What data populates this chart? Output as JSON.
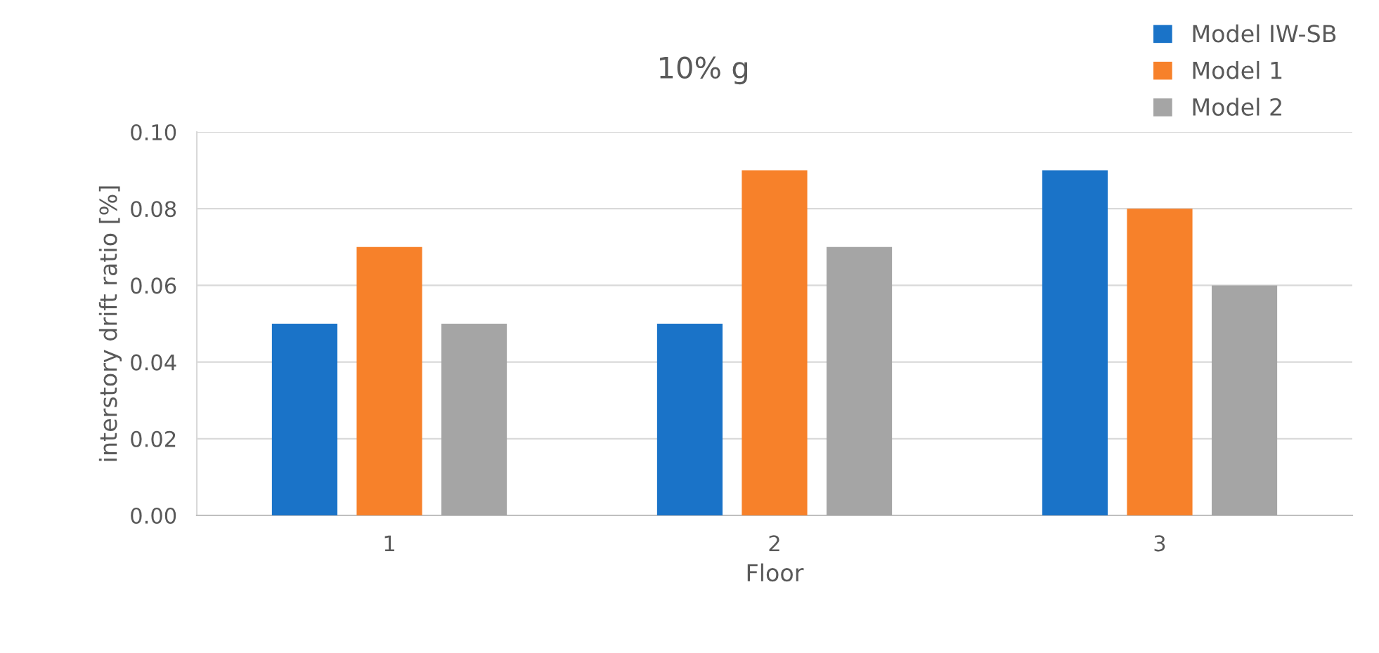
{
  "chart_data": {
    "type": "bar",
    "title": "10% g",
    "xlabel": "Floor",
    "ylabel": "interstory drift ratio [%]",
    "categories": [
      "1",
      "2",
      "3"
    ],
    "series": [
      {
        "name": "Model IW-SB",
        "color": "#1a73c8",
        "values": [
          0.05,
          0.05,
          0.09
        ]
      },
      {
        "name": "Model 1",
        "color": "#f7812a",
        "values": [
          0.07,
          0.09,
          0.08
        ]
      },
      {
        "name": "Model 2",
        "color": "#a5a5a5",
        "values": [
          0.05,
          0.07,
          0.06
        ]
      }
    ],
    "ylim": [
      0,
      0.1
    ],
    "yticks": [
      {
        "value": 0,
        "label": "0.00"
      },
      {
        "value": 0.02,
        "label": "0.02"
      },
      {
        "value": 0.04,
        "label": "0.04"
      },
      {
        "value": 0.06,
        "label": "0.06"
      },
      {
        "value": 0.08,
        "label": "0.08"
      },
      {
        "value": 0.1,
        "label": "0.10"
      }
    ],
    "grid": "y",
    "legend": "top right"
  }
}
